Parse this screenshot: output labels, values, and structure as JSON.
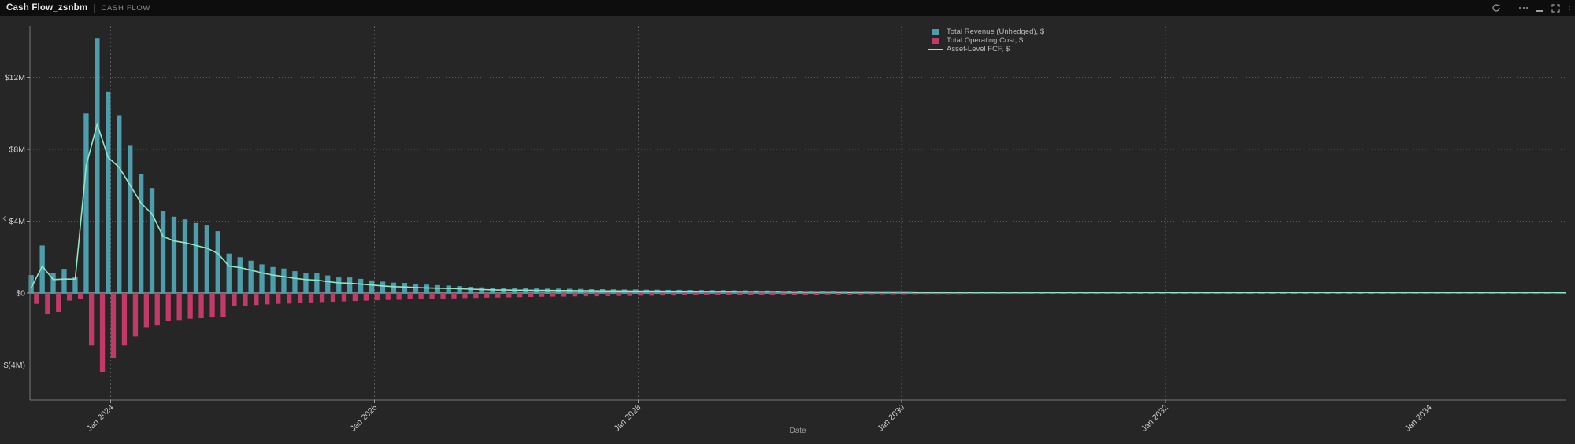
{
  "header": {
    "title": "Cash Flow_zsnbm",
    "subtitle": "CASH FLOW"
  },
  "toolbar": {
    "icons": [
      "refresh",
      "more-options",
      "minimize",
      "expand",
      "expand-partial"
    ],
    "icon_color": "#9e9e9e"
  },
  "side_controls": {
    "collapse_chevron": "‹"
  },
  "colors": {
    "panel_background": "#262626",
    "titlebar_background": "#0d0d0d",
    "gridline": "#5d5d5d",
    "zero_line": "#d9d9d9",
    "axis_line": "#757575",
    "tick_text": "#cfcfcf",
    "revenue_bar": "#4D9EAC",
    "cost_bar": "#C13A68",
    "fcf_line": "#8BE8C7"
  },
  "chart_data": {
    "type": "bar",
    "subtype": "grouped bars with overlay line",
    "title": "",
    "xlabel": "Date",
    "ylabel": "",
    "x_start": "Jun 2023",
    "x_interval": "monthly",
    "ylim": [
      -6,
      15
    ],
    "grid": true,
    "legend_position": "top-right",
    "x_ticks": [
      {
        "label": "Jan 2024",
        "month_index": 7
      },
      {
        "label": "Jan 2026",
        "month_index": 31
      },
      {
        "label": "Jan 2028",
        "month_index": 55
      },
      {
        "label": "Jan 2030",
        "month_index": 79
      },
      {
        "label": "Jan 2032",
        "month_index": 103
      },
      {
        "label": "Jan 2034",
        "month_index": 127
      }
    ],
    "y_ticks": [
      {
        "label": "$12M",
        "value": 12
      },
      {
        "label": "$8M",
        "value": 8
      },
      {
        "label": "$4M",
        "value": 4
      },
      {
        "label": "$0",
        "value": 0
      },
      {
        "label": "$(4M)",
        "value": -4
      }
    ],
    "series": [
      {
        "name": "Total Revenue (Unhedged), $",
        "type": "bar",
        "color": "#4D9EAC",
        "unit": "$M",
        "values": [
          1.0,
          2.65,
          1.1,
          1.35,
          0.9,
          10.0,
          14.2,
          11.2,
          9.9,
          8.2,
          6.6,
          5.85,
          4.55,
          4.25,
          4.1,
          3.9,
          3.8,
          3.45,
          2.2,
          2.0,
          1.8,
          1.6,
          1.45,
          1.37,
          1.22,
          1.12,
          1.12,
          0.98,
          0.87,
          0.87,
          0.79,
          0.71,
          0.64,
          0.58,
          0.57,
          0.5,
          0.47,
          0.44,
          0.42,
          0.39,
          0.35,
          0.32,
          0.3,
          0.29,
          0.28,
          0.27,
          0.26,
          0.25,
          0.25,
          0.24,
          0.23,
          0.22,
          0.22,
          0.21,
          0.2,
          0.2,
          0.19,
          0.19,
          0.18,
          0.18,
          0.17,
          0.17,
          0.16,
          0.16,
          0.15,
          0.15,
          0.14,
          0.14,
          0.13,
          0.13,
          0.13,
          0.12,
          0.12,
          0.12,
          0.11,
          0.11,
          0.11,
          0.1,
          0.1,
          0.1,
          0.09,
          0.09,
          0.09,
          0.09,
          0.08,
          0.08,
          0.08,
          0.08,
          0.07,
          0.07,
          0.07,
          0.07,
          0.07,
          0.06,
          0.06,
          0.06,
          0.06,
          0.06,
          0.06,
          0.05,
          0.05,
          0.05,
          0.05,
          0.05,
          0.05,
          0.05,
          0.05,
          0.05,
          0.05,
          0.05,
          0.04,
          0.04,
          0.04,
          0.04,
          0.04,
          0.04,
          0.04,
          0.04,
          0.04,
          0.04,
          0.04,
          0.04,
          0.03,
          0.03,
          0.03,
          0.03,
          0.03,
          0.03,
          0.03,
          0.03,
          0.03,
          0.03,
          0.03,
          0.03,
          0.03,
          0.03,
          0.03,
          0.03,
          0.03
        ]
      },
      {
        "name": "Total Operating Cost, $",
        "type": "bar",
        "color": "#C13A68",
        "unit": "$M",
        "values": [
          -0.6,
          -1.15,
          -1.05,
          -0.42,
          -0.35,
          -2.9,
          -4.4,
          -3.6,
          -2.9,
          -2.42,
          -1.9,
          -1.8,
          -1.55,
          -1.5,
          -1.43,
          -1.4,
          -1.36,
          -1.31,
          -0.72,
          -0.7,
          -0.67,
          -0.63,
          -0.6,
          -0.58,
          -0.55,
          -0.52,
          -0.5,
          -0.48,
          -0.46,
          -0.44,
          -0.42,
          -0.4,
          -0.38,
          -0.37,
          -0.35,
          -0.34,
          -0.32,
          -0.31,
          -0.3,
          -0.28,
          -0.27,
          -0.26,
          -0.25,
          -0.24,
          -0.23,
          -0.22,
          -0.21,
          -0.2,
          -0.2,
          -0.19,
          -0.18,
          -0.18,
          -0.17,
          -0.16,
          -0.16,
          -0.15,
          -0.15,
          -0.14,
          -0.14,
          -0.13,
          -0.13,
          -0.12,
          -0.12,
          -0.11,
          -0.11,
          -0.11,
          -0.1,
          -0.1,
          -0.1,
          -0.09,
          -0.09,
          -0.09,
          -0.08,
          -0.08,
          -0.08,
          -0.08,
          -0.07,
          -0.07,
          -0.07,
          -0.07,
          -0.06,
          -0.06,
          -0.06,
          -0.06,
          -0.06,
          -0.05,
          -0.05,
          -0.05,
          -0.05,
          -0.05,
          -0.05,
          -0.04,
          -0.04,
          -0.04,
          -0.04,
          -0.04,
          -0.04,
          -0.04,
          -0.04,
          -0.03,
          -0.03,
          -0.03,
          -0.03,
          -0.03,
          -0.03,
          -0.03,
          -0.03,
          -0.03,
          -0.03,
          -0.03,
          -0.03,
          -0.02,
          -0.02,
          -0.02,
          -0.02,
          -0.02,
          -0.02,
          -0.02,
          -0.02,
          -0.02,
          -0.02,
          -0.02,
          -0.02,
          -0.02,
          -0.02,
          -0.02,
          -0.02,
          -0.02,
          -0.02,
          -0.02,
          -0.02,
          -0.02,
          -0.02,
          -0.02,
          -0.02,
          -0.02,
          -0.02,
          -0.02,
          -0.02
        ]
      },
      {
        "name": "Asset-Level FCF, $",
        "type": "line",
        "color": "#8BE8C7",
        "unit": "$M",
        "values": [
          0.3,
          1.5,
          0.75,
          0.78,
          0.78,
          7.1,
          9.4,
          7.55,
          7.0,
          6.0,
          5.0,
          4.4,
          3.15,
          2.9,
          2.8,
          2.65,
          2.5,
          2.2,
          1.5,
          1.42,
          1.28,
          1.12,
          1.0,
          0.92,
          0.82,
          0.75,
          0.72,
          0.64,
          0.57,
          0.55,
          0.5,
          0.45,
          0.4,
          0.36,
          0.34,
          0.31,
          0.29,
          0.27,
          0.26,
          0.24,
          0.22,
          0.2,
          0.18,
          0.17,
          0.16,
          0.16,
          0.15,
          0.15,
          0.14,
          0.14,
          0.13,
          0.13,
          0.12,
          0.12,
          0.12,
          0.11,
          0.11,
          0.11,
          0.1,
          0.1,
          0.1,
          0.09,
          0.09,
          0.09,
          0.09,
          0.08,
          0.08,
          0.08,
          0.08,
          0.07,
          0.07,
          0.07,
          0.07,
          0.07,
          0.06,
          0.06,
          0.06,
          0.06,
          0.06,
          0.06,
          0.06,
          0.05,
          0.05,
          0.05,
          0.05,
          0.05,
          0.05,
          0.05,
          0.05,
          0.05,
          0.05,
          0.04,
          0.04,
          0.04,
          0.04,
          0.04,
          0.04,
          0.04,
          0.04,
          0.04,
          0.04,
          0.04,
          0.04,
          0.04,
          0.03,
          0.03,
          0.03,
          0.03,
          0.03,
          0.03,
          0.03,
          0.03,
          0.03,
          0.03,
          0.03,
          0.03,
          0.03,
          0.03,
          0.03,
          0.03,
          0.03,
          0.03,
          0.03,
          0.02,
          0.02,
          0.02,
          0.02,
          0.02,
          0.02,
          0.02,
          0.02,
          0.02,
          0.02,
          0.02,
          0.02,
          0.02,
          0.02,
          0.02,
          0.02
        ]
      }
    ]
  }
}
